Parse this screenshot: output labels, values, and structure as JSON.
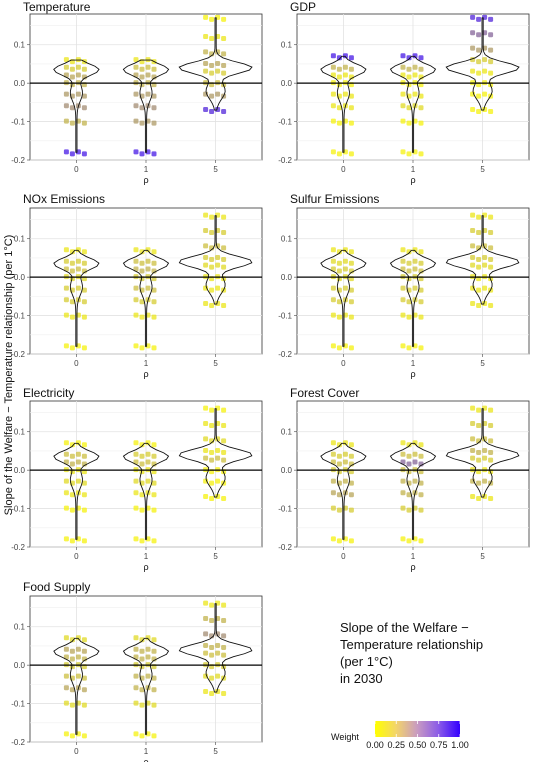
{
  "figure": {
    "y_axis_label": "Slope of the Welfare − Temperature relationship (per 1°C)",
    "caption_lines": [
      "Slope of the Welfare −",
      "Temperature relationship",
      "(per 1°C)",
      "in 2030"
    ],
    "legend": {
      "title": "Weight",
      "ticks": [
        "0.00",
        "0.25",
        "0.50",
        "0.75",
        "1.00"
      ],
      "colors": [
        "#ffff00",
        "#3300ff"
      ]
    }
  },
  "chart_data": [
    {
      "type": "scatter",
      "title": "Temperature",
      "xlabel": "ρ",
      "categories": [
        "0",
        "1",
        "5"
      ],
      "yticks": [
        "0.1",
        "0.0",
        "-0.1",
        "-0.2"
      ],
      "ylim": [
        -0.2,
        0.18
      ],
      "series": [
        {
          "values": [
            0.06,
            0.04,
            0.02,
            0.0,
            -0.03,
            -0.06,
            -0.1,
            -0.18
          ],
          "weights": [
            0.1,
            0.2,
            0.35,
            0.3,
            0.4,
            0.45,
            0.3,
            0.9
          ]
        },
        {
          "values": [
            0.06,
            0.04,
            0.02,
            0.0,
            -0.03,
            -0.06,
            -0.1,
            -0.18
          ],
          "weights": [
            0.1,
            0.25,
            0.35,
            0.3,
            0.4,
            0.45,
            0.4,
            0.9
          ]
        },
        {
          "values": [
            0.17,
            0.12,
            0.08,
            0.05,
            0.03,
            0.0,
            -0.03,
            -0.07
          ],
          "weights": [
            0.05,
            0.1,
            0.3,
            0.35,
            0.2,
            0.25,
            0.4,
            0.85
          ]
        }
      ]
    },
    {
      "type": "scatter",
      "title": "GDP",
      "xlabel": "ρ",
      "categories": [
        "0",
        "1",
        "5"
      ],
      "yticks": [
        "0.1",
        "0.0",
        "-0.1",
        "-0.2"
      ],
      "ylim": [
        -0.2,
        0.18
      ],
      "series": [
        {
          "values": [
            0.07,
            0.04,
            0.02,
            0.0,
            -0.03,
            -0.06,
            -0.1,
            -0.18
          ],
          "weights": [
            0.9,
            0.3,
            0.1,
            0.05,
            0.1,
            0.1,
            0.05,
            0.05
          ]
        },
        {
          "values": [
            0.07,
            0.04,
            0.02,
            0.0,
            -0.03,
            -0.06,
            -0.1,
            -0.18
          ],
          "weights": [
            0.9,
            0.3,
            0.1,
            0.05,
            0.1,
            0.15,
            0.05,
            0.05
          ]
        },
        {
          "values": [
            0.17,
            0.13,
            0.09,
            0.06,
            0.03,
            0.0,
            -0.03,
            -0.07
          ],
          "weights": [
            0.85,
            0.6,
            0.4,
            0.2,
            0.1,
            0.05,
            0.05,
            0.05
          ]
        }
      ]
    },
    {
      "type": "scatter",
      "title": "NOx Emissions",
      "xlabel": "ρ",
      "categories": [
        "0",
        "1",
        "5"
      ],
      "yticks": [
        "0.1",
        "0.0",
        "-0.1",
        "-0.2"
      ],
      "ylim": [
        -0.2,
        0.18
      ],
      "series": [
        {
          "values": [
            0.07,
            0.04,
            0.02,
            0.0,
            -0.03,
            -0.06,
            -0.1,
            -0.18
          ],
          "weights": [
            0.1,
            0.2,
            0.25,
            0.15,
            0.2,
            0.2,
            0.1,
            0.05
          ]
        },
        {
          "values": [
            0.07,
            0.04,
            0.02,
            0.0,
            -0.03,
            -0.06,
            -0.1,
            -0.18
          ],
          "weights": [
            0.1,
            0.25,
            0.3,
            0.2,
            0.25,
            0.2,
            0.1,
            0.05
          ]
        },
        {
          "values": [
            0.16,
            0.12,
            0.08,
            0.05,
            0.03,
            0.0,
            -0.03,
            -0.07
          ],
          "weights": [
            0.1,
            0.2,
            0.25,
            0.2,
            0.15,
            0.1,
            0.1,
            0.1
          ]
        }
      ]
    },
    {
      "type": "scatter",
      "title": "Sulfur Emissions",
      "xlabel": "ρ",
      "categories": [
        "0",
        "1",
        "5"
      ],
      "yticks": [
        "0.1",
        "0.0",
        "-0.1",
        "-0.2"
      ],
      "ylim": [
        -0.2,
        0.18
      ],
      "series": [
        {
          "values": [
            0.07,
            0.04,
            0.02,
            0.0,
            -0.03,
            -0.06,
            -0.1,
            -0.18
          ],
          "weights": [
            0.1,
            0.15,
            0.2,
            0.15,
            0.2,
            0.2,
            0.1,
            0.05
          ]
        },
        {
          "values": [
            0.07,
            0.04,
            0.02,
            0.0,
            -0.03,
            -0.06,
            -0.1,
            -0.18
          ],
          "weights": [
            0.1,
            0.2,
            0.25,
            0.2,
            0.2,
            0.2,
            0.1,
            0.05
          ]
        },
        {
          "values": [
            0.16,
            0.12,
            0.08,
            0.05,
            0.03,
            0.0,
            -0.03,
            -0.07
          ],
          "weights": [
            0.1,
            0.2,
            0.25,
            0.2,
            0.15,
            0.1,
            0.1,
            0.1
          ]
        }
      ]
    },
    {
      "type": "scatter",
      "title": "Electricity",
      "xlabel": "ρ",
      "categories": [
        "0",
        "1",
        "5"
      ],
      "yticks": [
        "0.1",
        "0.0",
        "-0.1",
        "-0.2"
      ],
      "ylim": [
        -0.2,
        0.18
      ],
      "series": [
        {
          "values": [
            0.07,
            0.04,
            0.02,
            0.0,
            -0.03,
            -0.06,
            -0.1,
            -0.18
          ],
          "weights": [
            0.05,
            0.25,
            0.3,
            0.1,
            0.15,
            0.1,
            0.05,
            0.05
          ]
        },
        {
          "values": [
            0.07,
            0.04,
            0.02,
            0.0,
            -0.03,
            -0.06,
            -0.1,
            -0.18
          ],
          "weights": [
            0.05,
            0.2,
            0.25,
            0.1,
            0.15,
            0.1,
            0.05,
            0.05
          ]
        },
        {
          "values": [
            0.16,
            0.12,
            0.08,
            0.05,
            0.03,
            0.0,
            -0.03,
            -0.07
          ],
          "weights": [
            0.05,
            0.1,
            0.15,
            0.1,
            0.25,
            0.05,
            0.05,
            0.05
          ]
        }
      ]
    },
    {
      "type": "scatter",
      "title": "Forest Cover",
      "xlabel": "ρ",
      "categories": [
        "0",
        "1",
        "5"
      ],
      "yticks": [
        "0.1",
        "0.0",
        "-0.1",
        "-0.2"
      ],
      "ylim": [
        -0.2,
        0.18
      ],
      "series": [
        {
          "values": [
            0.07,
            0.04,
            0.02,
            0.0,
            -0.03,
            -0.06,
            -0.1,
            -0.18
          ],
          "weights": [
            0.1,
            0.2,
            0.25,
            0.2,
            0.3,
            0.35,
            0.2,
            0.05
          ]
        },
        {
          "values": [
            0.07,
            0.04,
            0.02,
            0.0,
            -0.03,
            -0.06,
            -0.1,
            -0.18
          ],
          "weights": [
            0.1,
            0.25,
            0.6,
            0.25,
            0.3,
            0.3,
            0.2,
            0.05
          ]
        },
        {
          "values": [
            0.16,
            0.12,
            0.08,
            0.05,
            0.03,
            0.0,
            -0.03,
            -0.07
          ],
          "weights": [
            0.1,
            0.2,
            0.25,
            0.3,
            0.2,
            0.1,
            0.3,
            0.1
          ]
        }
      ]
    },
    {
      "type": "scatter",
      "title": "Food Supply",
      "xlabel": "ρ",
      "categories": [
        "0",
        "1",
        "5"
      ],
      "yticks": [
        "0.1",
        "0.0",
        "-0.1",
        "-0.2"
      ],
      "ylim": [
        -0.2,
        0.18
      ],
      "series": [
        {
          "values": [
            0.07,
            0.04,
            0.02,
            0.0,
            -0.03,
            -0.06,
            -0.1,
            -0.18
          ],
          "weights": [
            0.15,
            0.35,
            0.3,
            0.2,
            0.25,
            0.35,
            0.15,
            0.05
          ]
        },
        {
          "values": [
            0.07,
            0.04,
            0.02,
            0.0,
            -0.03,
            -0.06,
            -0.1,
            -0.18
          ],
          "weights": [
            0.15,
            0.3,
            0.3,
            0.2,
            0.3,
            0.3,
            0.15,
            0.05
          ]
        },
        {
          "values": [
            0.16,
            0.12,
            0.08,
            0.05,
            0.03,
            0.0,
            -0.03,
            -0.07
          ],
          "weights": [
            0.1,
            0.3,
            0.45,
            0.3,
            0.25,
            0.2,
            0.15,
            0.1
          ]
        }
      ]
    }
  ]
}
